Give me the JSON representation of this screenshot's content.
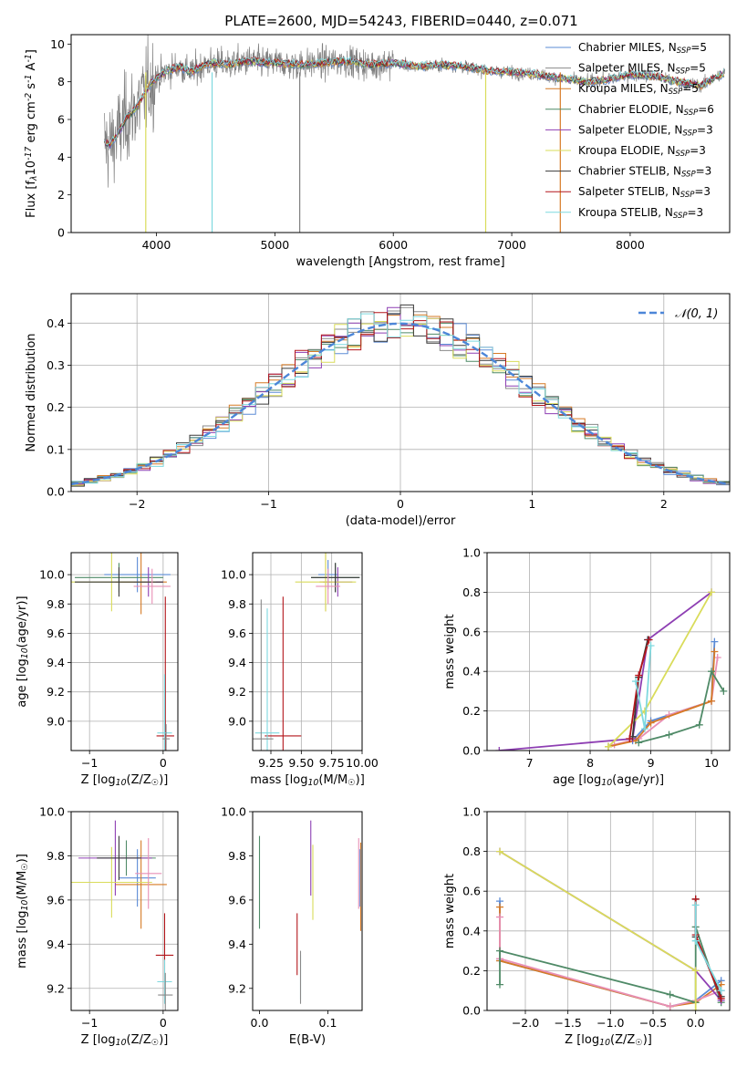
{
  "figure": {
    "title": "PLATE=2600, MJD=54243, FIBERID=0440, z=0.071"
  },
  "colors": {
    "series": [
      "#5b8bd6",
      "#8a8a8a",
      "#d67a25",
      "#4f8a67",
      "#8e3fb3",
      "#d9dc5a",
      "#3a3a3a",
      "#b3161b",
      "#7fd9df"
    ]
  },
  "chart_data": [
    {
      "id": "spectrum",
      "type": "line",
      "xlabel": "wavelength [Angstrom, rest frame]",
      "ylabel": "Flux [f$_\\lambda$10$^{-17}$ erg cm$^{-2}$ s$^{-1}$ A$^{-1}$]",
      "xlim": [
        3280,
        8840
      ],
      "ylim": [
        0,
        10.5
      ],
      "xticks": [
        4000,
        5000,
        6000,
        7000,
        8000
      ],
      "yticks": [
        0,
        2,
        4,
        6,
        8,
        10
      ],
      "legend_position": "right",
      "legend": [
        {
          "label": "Chabrier MILES, N",
          "sub": "SSP",
          "tail": "=5"
        },
        {
          "label": "Salpeter MILES, N",
          "sub": "SSP",
          "tail": "=5"
        },
        {
          "label": "Kroupa MILES, N",
          "sub": "SSP",
          "tail": "=5"
        },
        {
          "label": "Chabrier ELODIE, N",
          "sub": "SSP",
          "tail": "=6"
        },
        {
          "label": "Salpeter ELODIE, N",
          "sub": "SSP",
          "tail": "=3"
        },
        {
          "label": "Kroupa ELODIE, N",
          "sub": "SSP",
          "tail": "=3"
        },
        {
          "label": "Chabrier STELIB, N",
          "sub": "SSP",
          "tail": "=3"
        },
        {
          "label": "Salpeter STELIB, N",
          "sub": "SSP",
          "tail": "=3"
        },
        {
          "label": "Kroupa STELIB, N",
          "sub": "SSP",
          "tail": "=3"
        }
      ],
      "model_continuum": {
        "x": [
          3560,
          3600,
          3650,
          3700,
          3750,
          3800,
          3850,
          3900,
          3950,
          4000,
          4100,
          4200,
          4300,
          4400,
          4500,
          4600,
          4700,
          4800,
          4900,
          5000,
          5200,
          5400,
          5600,
          5800,
          6000,
          6200,
          6400,
          6600,
          6800,
          7000,
          7200,
          7400,
          7600,
          7800,
          8000,
          8200,
          8400,
          8600,
          8800
        ],
        "y": [
          4.8,
          4.6,
          5.0,
          5.5,
          6.1,
          6.4,
          6.8,
          7.4,
          7.9,
          8.2,
          8.6,
          8.8,
          8.5,
          8.9,
          9.0,
          8.9,
          9.0,
          9.1,
          9.0,
          9.0,
          8.9,
          9.0,
          9.1,
          8.9,
          9.0,
          8.8,
          8.9,
          8.8,
          8.6,
          8.5,
          8.4,
          8.2,
          8.0,
          8.1,
          8.4,
          8.3,
          8.0,
          7.8,
          8.5
        ]
      },
      "drop_lines_x": [
        3910,
        4470,
        5210,
        6780,
        7410
      ]
    },
    {
      "id": "residuals",
      "type": "line",
      "xlabel": "(data-model)/error",
      "ylabel": "Normed distribution",
      "xlim": [
        -2.5,
        2.5
      ],
      "ylim": [
        0,
        0.47
      ],
      "xticks": [
        -2,
        -1,
        0,
        1,
        2
      ],
      "xticklabels": [
        "−2",
        "−1",
        "0",
        "1",
        "2"
      ],
      "yticks": [
        0.0,
        0.1,
        0.2,
        0.3,
        0.4
      ],
      "yticklabels": [
        "0.0",
        "0.1",
        "0.2",
        "0.3",
        "0.4"
      ],
      "grid": true,
      "legend_position": "top-right",
      "legend": [
        {
          "label": "𝒩(0, 1)"
        }
      ],
      "gaussian": {
        "mu": 0,
        "sigma": 1
      }
    },
    {
      "id": "age-vs-Z",
      "type": "scatter",
      "xlabel": "Z [log$_{10}$(Z/Z$_\\odot$)]",
      "ylabel": "age  [log$_{10}$(age/yr)]",
      "xlim": [
        -1.25,
        0.2
      ],
      "ylim": [
        8.8,
        10.15
      ],
      "xticks": [
        -1,
        0
      ],
      "xticklabels": [
        "−1",
        "0"
      ],
      "yticks": [
        9.0,
        9.2,
        9.4,
        9.6,
        9.8,
        10.0
      ],
      "yticklabels": [
        "9.0",
        "9.2",
        "9.4",
        "9.6",
        "9.8",
        "10.0"
      ],
      "grid": true,
      "points": [
        {
          "c": 0,
          "x": -0.35,
          "y": 10.0,
          "xe": 0.45,
          "ye": 0.12
        },
        {
          "c": 2,
          "x": -0.3,
          "y": 9.95,
          "xe": 0.35,
          "ye": 0.22
        },
        {
          "c": 3,
          "x": -0.6,
          "y": 9.98,
          "xe": 0.6,
          "ye": 0.1
        },
        {
          "c": 4,
          "x": -0.2,
          "y": 9.95,
          "xe": 0.2,
          "ye": 0.1
        },
        {
          "c": 5,
          "x": -0.7,
          "y": 9.95,
          "xe": 0.6,
          "ye": 0.2
        },
        {
          "c": 6,
          "x": -0.6,
          "y": 9.95,
          "xe": 0.6,
          "ye": 0.1
        },
        {
          "c": 9,
          "x": -0.15,
          "y": 9.92,
          "xe": 0.25,
          "ye": 0.12
        },
        {
          "c": 7,
          "x": 0.03,
          "y": 8.9,
          "xe": 0.12,
          "ye": 0.95
        },
        {
          "c": 8,
          "x": 0.02,
          "y": 8.92,
          "xe": 0.1,
          "ye": 0.4
        },
        {
          "c": 1,
          "x": 0.04,
          "y": 8.88,
          "xe": 0.05,
          "ye": 0.1
        }
      ]
    },
    {
      "id": "age-vs-mass",
      "type": "scatter",
      "xlabel": "mass [log$_{10}$(M/M$_\\odot$)]",
      "ylabel": "",
      "xlim": [
        9.1,
        10.0
      ],
      "ylim": [
        8.8,
        10.15
      ],
      "xticks": [
        9.25,
        9.5,
        9.75,
        10.0
      ],
      "xticklabels": [
        "9.25",
        "9.50",
        "9.75",
        "10.00"
      ],
      "yticks": [
        9.0,
        9.2,
        9.4,
        9.6,
        9.8,
        10.0
      ],
      "yticklabels": [
        "9.0",
        "9.2",
        "9.4",
        "9.6",
        "9.8",
        "10.0"
      ],
      "grid": true,
      "points": [
        {
          "c": 0,
          "x": 9.72,
          "y": 10.0,
          "xe": 0.08,
          "ye": 0.1
        },
        {
          "c": 2,
          "x": 9.7,
          "y": 9.95,
          "xe": 0.05,
          "ye": 0.2
        },
        {
          "c": 3,
          "x": 9.78,
          "y": 9.98,
          "xe": 0.2,
          "ye": 0.1
        },
        {
          "c": 4,
          "x": 9.8,
          "y": 9.95,
          "xe": 0.12,
          "ye": 0.1
        },
        {
          "c": 5,
          "x": 9.7,
          "y": 9.95,
          "xe": 0.25,
          "ye": 0.2
        },
        {
          "c": 6,
          "x": 9.78,
          "y": 9.98,
          "xe": 0.2,
          "ye": 0.1
        },
        {
          "c": 9,
          "x": 9.72,
          "y": 9.92,
          "xe": 0.1,
          "ye": 0.12
        },
        {
          "c": 7,
          "x": 9.35,
          "y": 8.9,
          "xe": 0.15,
          "ye": 0.95
        },
        {
          "c": 8,
          "x": 9.22,
          "y": 8.92,
          "xe": 0.1,
          "ye": 0.85
        },
        {
          "c": 1,
          "x": 9.17,
          "y": 8.88,
          "xe": 0.1,
          "ye": 0.95
        }
      ]
    },
    {
      "id": "massweight-vs-age",
      "type": "line",
      "xlabel": "age  [log$_{10}$(age/yr)]",
      "ylabel": "mass weight",
      "xlim": [
        6.3,
        10.3
      ],
      "ylim": [
        0,
        1.0
      ],
      "xticks": [
        7,
        8,
        9,
        10
      ],
      "xticklabels": [
        "7",
        "8",
        "9",
        "10"
      ],
      "yticks": [
        0.0,
        0.2,
        0.4,
        0.6,
        0.8,
        1.0
      ],
      "yticklabels": [
        "0.0",
        "0.2",
        "0.4",
        "0.6",
        "0.8",
        "1.0"
      ],
      "grid": true,
      "series": [
        {
          "c": 0,
          "x": [
            8.3,
            8.7,
            9.0,
            10.0,
            10.05
          ],
          "y": [
            0.02,
            0.05,
            0.15,
            0.25,
            0.55
          ]
        },
        {
          "c": 9,
          "x": [
            8.4,
            8.8,
            9.3,
            10.0,
            10.1
          ],
          "y": [
            0.03,
            0.06,
            0.18,
            0.25,
            0.47
          ]
        },
        {
          "c": 2,
          "x": [
            8.3,
            8.75,
            9.0,
            10.0,
            10.05
          ],
          "y": [
            0.02,
            0.05,
            0.14,
            0.25,
            0.5
          ]
        },
        {
          "c": 3,
          "x": [
            8.8,
            9.3,
            9.8,
            10.0,
            10.2
          ],
          "y": [
            0.04,
            0.08,
            0.13,
            0.4,
            0.3
          ]
        },
        {
          "c": 4,
          "x": [
            6.5,
            8.7,
            8.95,
            10.0
          ],
          "y": [
            0.0,
            0.06,
            0.56,
            0.8
          ]
        },
        {
          "c": 5,
          "x": [
            8.3,
            8.9,
            10.0
          ],
          "y": [
            0.02,
            0.2,
            0.8
          ]
        },
        {
          "c": 6,
          "x": [
            8.7,
            8.8,
            8.95
          ],
          "y": [
            0.07,
            0.37,
            0.56
          ]
        },
        {
          "c": 7,
          "x": [
            8.65,
            8.8,
            8.97
          ],
          "y": [
            0.06,
            0.38,
            0.56
          ]
        },
        {
          "c": 8,
          "x": [
            8.75,
            8.9,
            9.0
          ],
          "y": [
            0.35,
            0.11,
            0.53
          ]
        }
      ]
    },
    {
      "id": "mass-vs-Z",
      "type": "scatter",
      "xlabel": "Z [log$_{10}$(Z/Z$_\\odot$)]",
      "ylabel": "mass [log$_{10}$(M/M$_\\odot$)]",
      "xlim": [
        -1.25,
        0.2
      ],
      "ylim": [
        9.1,
        10.0
      ],
      "xticks": [
        -1,
        0
      ],
      "xticklabels": [
        "−1",
        "0"
      ],
      "yticks": [
        9.2,
        9.4,
        9.6,
        9.8,
        10.0
      ],
      "yticklabels": [
        "9.2",
        "9.4",
        "9.6",
        "9.8",
        "10.0"
      ],
      "grid": true,
      "points": [
        {
          "c": 0,
          "x": -0.35,
          "y": 9.7,
          "xe": 0.25,
          "ye": 0.13
        },
        {
          "c": 2,
          "x": -0.3,
          "y": 9.67,
          "xe": 0.35,
          "ye": 0.2
        },
        {
          "c": 3,
          "x": -0.5,
          "y": 9.79,
          "xe": 0.4,
          "ye": 0.08
        },
        {
          "c": 4,
          "x": -0.65,
          "y": 9.79,
          "xe": 0.5,
          "ye": 0.17
        },
        {
          "c": 5,
          "x": -0.7,
          "y": 9.68,
          "xe": 0.55,
          "ye": 0.16
        },
        {
          "c": 6,
          "x": -0.6,
          "y": 9.79,
          "xe": 0.3,
          "ye": 0.1
        },
        {
          "c": 9,
          "x": -0.2,
          "y": 9.72,
          "xe": 0.18,
          "ye": 0.16
        },
        {
          "c": 7,
          "x": 0.02,
          "y": 9.35,
          "xe": 0.12,
          "ye": 0.19
        },
        {
          "c": 8,
          "x": 0.02,
          "y": 9.23,
          "xe": 0.1,
          "ye": 0.1
        },
        {
          "c": 1,
          "x": 0.03,
          "y": 9.17,
          "xe": 0.1,
          "ye": 0.1
        }
      ]
    },
    {
      "id": "mass-vs-EBV",
      "type": "scatter",
      "xlabel": "E(B-V)",
      "ylabel": "",
      "xlim": [
        -0.01,
        0.15
      ],
      "ylim": [
        9.1,
        10.0
      ],
      "xticks": [
        0.0,
        0.1
      ],
      "xticklabels": [
        "0.0",
        "0.1"
      ],
      "yticks": [
        9.2,
        9.4,
        9.6,
        9.8,
        10.0
      ],
      "yticklabels": [
        "9.2",
        "9.4",
        "9.6",
        "9.8",
        "10.0"
      ],
      "grid": false,
      "points": [
        {
          "c": 3,
          "x": 0.0,
          "y": 9.68,
          "xe": 0,
          "ye": 0.21
        },
        {
          "c": 4,
          "x": 0.075,
          "y": 9.79,
          "xe": 0,
          "ye": 0.17
        },
        {
          "c": 5,
          "x": 0.078,
          "y": 9.68,
          "xe": 0,
          "ye": 0.17
        },
        {
          "c": 9,
          "x": 0.145,
          "y": 9.72,
          "xe": 0,
          "ye": 0.16
        },
        {
          "c": 2,
          "x": 0.148,
          "y": 9.66,
          "xe": 0,
          "ye": 0.2
        },
        {
          "c": 0,
          "x": 0.147,
          "y": 9.7,
          "xe": 0,
          "ye": 0.13
        },
        {
          "c": 7,
          "x": 0.055,
          "y": 9.4,
          "xe": 0,
          "ye": 0.14
        },
        {
          "c": 8,
          "x": 0.06,
          "y": 9.25,
          "xe": 0,
          "ye": 0.1
        },
        {
          "c": 1,
          "x": 0.06,
          "y": 9.25,
          "xe": 0,
          "ye": 0.12
        }
      ]
    },
    {
      "id": "massweight-vs-Z",
      "type": "line",
      "xlabel": "Z [log$_{10}$(Z/Z$_\\odot$)]",
      "ylabel": "mass weight",
      "xlim": [
        -2.45,
        0.4
      ],
      "ylim": [
        0,
        1.0
      ],
      "xticks": [
        -2.0,
        -1.5,
        -1.0,
        -0.5,
        0.0
      ],
      "xticklabels": [
        "−2.0",
        "−1.5",
        "−1.0",
        "−0.5",
        "0.0"
      ],
      "yticks": [
        0.0,
        0.2,
        0.4,
        0.6,
        0.8,
        1.0
      ],
      "yticklabels": [
        "0.0",
        "0.2",
        "0.4",
        "0.6",
        "0.8",
        "1.0"
      ],
      "grid": true,
      "series": [
        {
          "c": 0,
          "x": [
            -2.3,
            -2.3,
            -0.3,
            0.0,
            0.3
          ],
          "y": [
            0.55,
            0.25,
            0.02,
            0.05,
            0.15
          ]
        },
        {
          "c": 2,
          "x": [
            -2.3,
            -2.3,
            -0.3,
            0.0,
            0.3
          ],
          "y": [
            0.52,
            0.25,
            0.02,
            0.04,
            0.13
          ]
        },
        {
          "c": 9,
          "x": [
            -2.3,
            -2.3,
            -0.3,
            0.0,
            0.3
          ],
          "y": [
            0.47,
            0.26,
            0.02,
            0.05,
            0.1
          ]
        },
        {
          "c": 3,
          "x": [
            -2.3,
            -2.3,
            -0.3,
            0.0,
            0.0,
            0.3
          ],
          "y": [
            0.13,
            0.3,
            0.08,
            0.04,
            0.42,
            0.04
          ]
        },
        {
          "c": 4,
          "x": [
            -2.3,
            0.0,
            0.3
          ],
          "y": [
            0.8,
            0.2,
            0.05
          ]
        },
        {
          "c": 5,
          "x": [
            -2.3,
            0.0,
            0.0
          ],
          "y": [
            0.8,
            0.2,
            0.0
          ]
        },
        {
          "c": 6,
          "x": [
            0.0,
            0.0,
            0.3
          ],
          "y": [
            0.56,
            0.37,
            0.07
          ]
        },
        {
          "c": 7,
          "x": [
            0.0,
            0.0,
            0.3
          ],
          "y": [
            0.56,
            0.38,
            0.06
          ]
        },
        {
          "c": 8,
          "x": [
            0.0,
            0.0,
            0.3
          ],
          "y": [
            0.53,
            0.35,
            0.1
          ]
        }
      ]
    }
  ]
}
